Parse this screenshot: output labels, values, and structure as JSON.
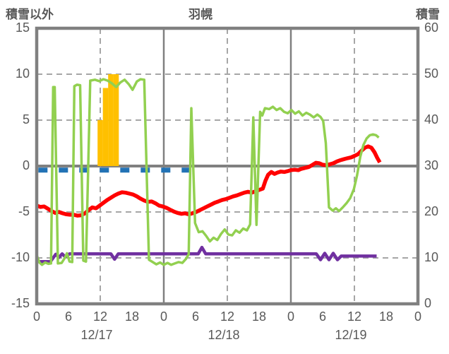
{
  "header": {
    "left_axis_title": "積雪以外",
    "chart_title": "羽幌",
    "right_axis_title": "積雪"
  },
  "colors": {
    "grid": "#A6A6A6",
    "frame": "#808080",
    "tick_text": "#595959",
    "green_line": "#92D050",
    "red_line": "#FF0000",
    "purple_line": "#7030A0",
    "blue_dashed_line": "#2272B5",
    "orange_bars": "#FFC000"
  },
  "chart_data": {
    "type": "line",
    "title": "羽幌",
    "left_axis": {
      "title": "積雪以外",
      "min": -15,
      "max": 15,
      "ticks": [
        15,
        10,
        5,
        0,
        -5,
        -10,
        -15
      ]
    },
    "right_axis": {
      "title": "積雪",
      "min": 0,
      "max": 60,
      "ticks": [
        60,
        50,
        40,
        30,
        20,
        10,
        0
      ]
    },
    "x_axis": {
      "total_hours": 72,
      "hour_tick_step": 6,
      "hour_tick_labels": [
        "0",
        "6",
        "12",
        "18",
        "0",
        "6",
        "12",
        "18",
        "0",
        "6",
        "12",
        "18",
        "0"
      ],
      "date_labels": [
        "12/17",
        "12/18",
        "12/19"
      ],
      "solid_gridline_hours": [
        24,
        48
      ],
      "dashed_gridline_hours": [
        12,
        36,
        60
      ]
    },
    "dashed_h_gridlines": [
      10,
      5,
      -5,
      -10
    ],
    "solid_h_gridlines": [
      0
    ],
    "bars": {
      "name": "orange-bars",
      "color": "#FFC000",
      "axis": "right",
      "baseline_right_value": 30,
      "values": [
        [
          12,
          40
        ],
        [
          13,
          47
        ],
        [
          14,
          50
        ],
        [
          15,
          50
        ]
      ]
    },
    "series": [
      {
        "name": "blue-dashed-line",
        "color": "#2272B5",
        "style": "dashed",
        "width": 7,
        "points": [
          [
            0.3,
            -0.45
          ],
          [
            28.8,
            -0.45
          ]
        ]
      },
      {
        "name": "purple-line",
        "color": "#7030A0",
        "style": "solid",
        "width": 4.5,
        "points": [
          [
            0,
            -10.4
          ],
          [
            2.6,
            -10.4
          ],
          [
            3.6,
            -9.6
          ],
          [
            4.2,
            -9.95
          ],
          [
            4.8,
            -9.55
          ],
          [
            5.4,
            -9.9
          ],
          [
            6.2,
            -9.55
          ],
          [
            14,
            -9.55
          ],
          [
            14.7,
            -10.15
          ],
          [
            15.4,
            -9.55
          ],
          [
            30.5,
            -9.55
          ],
          [
            31.2,
            -8.85
          ],
          [
            31.9,
            -9.55
          ],
          [
            52.8,
            -9.55
          ],
          [
            53.6,
            -10.2
          ],
          [
            54.4,
            -9.5
          ],
          [
            55.2,
            -10.2
          ],
          [
            56,
            -9.5
          ],
          [
            56.8,
            -10.2
          ],
          [
            57.5,
            -9.8
          ],
          [
            64.2,
            -9.8
          ]
        ]
      },
      {
        "name": "red-line",
        "color": "#FF0000",
        "style": "solid",
        "width": 5.5,
        "points": [
          [
            0,
            -4.3
          ],
          [
            0.7,
            -4.45
          ],
          [
            1.4,
            -4.4
          ],
          [
            2.1,
            -4.65
          ],
          [
            2.8,
            -4.9
          ],
          [
            3.5,
            -5.1
          ],
          [
            4.2,
            -5.0
          ],
          [
            4.9,
            -5.15
          ],
          [
            5.6,
            -5.25
          ],
          [
            6.3,
            -5.3
          ],
          [
            7,
            -5.3
          ],
          [
            7.7,
            -5.4
          ],
          [
            8.4,
            -5.35
          ],
          [
            9.1,
            -5.15
          ],
          [
            9.8,
            -4.8
          ],
          [
            10.5,
            -4.5
          ],
          [
            11.2,
            -4.6
          ],
          [
            11.9,
            -4.3
          ],
          [
            12.6,
            -4.0
          ],
          [
            13.3,
            -3.7
          ],
          [
            14,
            -3.45
          ],
          [
            14.7,
            -3.2
          ],
          [
            15.4,
            -3.0
          ],
          [
            16.1,
            -2.85
          ],
          [
            16.8,
            -2.9
          ],
          [
            17.5,
            -3.0
          ],
          [
            18.2,
            -3.1
          ],
          [
            18.9,
            -3.3
          ],
          [
            19.6,
            -3.55
          ],
          [
            20.3,
            -3.75
          ],
          [
            21,
            -3.9
          ],
          [
            21.7,
            -3.85
          ],
          [
            22.4,
            -4.05
          ],
          [
            23.1,
            -4.3
          ],
          [
            23.8,
            -4.4
          ],
          [
            24.5,
            -4.55
          ],
          [
            25.2,
            -4.75
          ],
          [
            25.9,
            -4.95
          ],
          [
            26.6,
            -5.1
          ],
          [
            27.3,
            -5.2
          ],
          [
            28,
            -5.15
          ],
          [
            28.7,
            -5.25
          ],
          [
            29.4,
            -5.15
          ],
          [
            30.1,
            -5.0
          ],
          [
            30.8,
            -4.8
          ],
          [
            31.5,
            -4.6
          ],
          [
            32.2,
            -4.4
          ],
          [
            32.9,
            -4.2
          ],
          [
            33.6,
            -4.0
          ],
          [
            34.3,
            -3.85
          ],
          [
            35,
            -3.7
          ],
          [
            35.7,
            -3.6
          ],
          [
            36.4,
            -3.45
          ],
          [
            37.1,
            -3.3
          ],
          [
            37.8,
            -3.2
          ],
          [
            38.5,
            -3.05
          ],
          [
            39.2,
            -2.9
          ],
          [
            39.9,
            -2.8
          ],
          [
            40.6,
            -2.9
          ],
          [
            41.3,
            -2.75
          ],
          [
            42,
            -2.6
          ],
          [
            42.7,
            -2.45
          ],
          [
            43.2,
            -1.6
          ],
          [
            43.7,
            -0.95
          ],
          [
            44.3,
            -0.65
          ],
          [
            44.9,
            -0.85
          ],
          [
            45.5,
            -0.7
          ],
          [
            46.1,
            -0.6
          ],
          [
            46.8,
            -0.65
          ],
          [
            47.4,
            -0.55
          ],
          [
            48,
            -0.45
          ],
          [
            48.7,
            -0.4
          ],
          [
            49.4,
            -0.45
          ],
          [
            50,
            -0.3
          ],
          [
            50.7,
            -0.2
          ],
          [
            51.4,
            -0.1
          ],
          [
            52,
            0.1
          ],
          [
            52.7,
            0.35
          ],
          [
            53.4,
            0.3
          ],
          [
            54,
            0.15
          ],
          [
            54.7,
            0.1
          ],
          [
            55.4,
            0.2
          ],
          [
            56,
            0.3
          ],
          [
            56.7,
            0.5
          ],
          [
            57.4,
            0.65
          ],
          [
            58,
            0.75
          ],
          [
            58.7,
            0.85
          ],
          [
            59.4,
            0.95
          ],
          [
            60,
            1.1
          ],
          [
            60.7,
            1.3
          ],
          [
            61.4,
            1.7
          ],
          [
            62,
            2.0
          ],
          [
            62.6,
            2.15
          ],
          [
            63.2,
            2.0
          ],
          [
            63.8,
            1.5
          ],
          [
            64.3,
            0.9
          ],
          [
            64.8,
            0.4
          ]
        ]
      },
      {
        "name": "green-line",
        "color": "#92D050",
        "style": "solid",
        "width": 3.5,
        "points": [
          [
            0,
            -9.7
          ],
          [
            0.5,
            -10.5
          ],
          [
            1,
            -10.75
          ],
          [
            1.6,
            -10.5
          ],
          [
            2.2,
            -10.65
          ],
          [
            2.7,
            -10.6
          ],
          [
            3.1,
            8.6
          ],
          [
            3.4,
            8.6
          ],
          [
            4,
            -10.6
          ],
          [
            4.7,
            -10.55
          ],
          [
            5.3,
            -10.0
          ],
          [
            5.7,
            -9.5
          ],
          [
            6.2,
            -10.4
          ],
          [
            6.7,
            -10.45
          ],
          [
            7.1,
            8.7
          ],
          [
            7.6,
            8.85
          ],
          [
            8.2,
            8.8
          ],
          [
            8.8,
            -10.3
          ],
          [
            9.3,
            -10.4
          ],
          [
            10.1,
            9.3
          ],
          [
            11,
            9.4
          ],
          [
            11.8,
            9.25
          ],
          [
            12.6,
            9.45
          ],
          [
            13.4,
            9.3
          ],
          [
            14.2,
            9.0
          ],
          [
            15,
            8.6
          ],
          [
            15.8,
            9.1
          ],
          [
            16.6,
            9.4
          ],
          [
            17.4,
            8.9
          ],
          [
            18.1,
            8.3
          ],
          [
            18.9,
            9.2
          ],
          [
            19.6,
            9.45
          ],
          [
            20.3,
            9.4
          ],
          [
            21.2,
            -10.2
          ],
          [
            21.9,
            -10.45
          ],
          [
            22.6,
            -10.7
          ],
          [
            23.3,
            -10.5
          ],
          [
            24,
            -10.75
          ],
          [
            24.7,
            -10.55
          ],
          [
            25.4,
            -10.75
          ],
          [
            26.1,
            -10.6
          ],
          [
            26.8,
            -10.45
          ],
          [
            27.5,
            -10.55
          ],
          [
            28.2,
            -10.1
          ],
          [
            28.7,
            -9.6
          ],
          [
            29.2,
            6.3
          ],
          [
            29.9,
            -6.2
          ],
          [
            30.6,
            -7.2
          ],
          [
            31.3,
            -7.1
          ],
          [
            32,
            -7.6
          ],
          [
            32.7,
            -8.2
          ],
          [
            33.4,
            -7.8
          ],
          [
            34.1,
            -8.05
          ],
          [
            34.8,
            -7.4
          ],
          [
            35.5,
            -6.9
          ],
          [
            36.2,
            -7.45
          ],
          [
            36.9,
            -7.55
          ],
          [
            37.6,
            -7.0
          ],
          [
            38.3,
            -7.25
          ],
          [
            39,
            -6.8
          ],
          [
            39.7,
            -7.0
          ],
          [
            40.3,
            -6.35
          ],
          [
            40.9,
            5.3
          ],
          [
            41.5,
            -6.4
          ],
          [
            42.2,
            5.9
          ],
          [
            42.6,
            5.5
          ],
          [
            43.1,
            6.3
          ],
          [
            43.9,
            6.2
          ],
          [
            44.6,
            6.45
          ],
          [
            45.3,
            6.1
          ],
          [
            46,
            6.3
          ],
          [
            46.7,
            5.9
          ],
          [
            47.4,
            5.75
          ],
          [
            48.1,
            6.1
          ],
          [
            48.8,
            5.7
          ],
          [
            49.5,
            5.95
          ],
          [
            50.2,
            5.5
          ],
          [
            50.9,
            5.8
          ],
          [
            51.6,
            5.6
          ],
          [
            52.3,
            5.3
          ],
          [
            53,
            5.6
          ],
          [
            53.6,
            5.35
          ],
          [
            54.1,
            4.9
          ],
          [
            54.6,
            2.5
          ],
          [
            55.2,
            -4.5
          ],
          [
            55.9,
            -4.85
          ],
          [
            56.5,
            -4.6
          ],
          [
            57.1,
            -4.9
          ],
          [
            57.8,
            -4.5
          ],
          [
            58.5,
            -4.05
          ],
          [
            59.2,
            -3.5
          ],
          [
            59.9,
            -2.5
          ],
          [
            60.5,
            -1.0
          ],
          [
            61.1,
            1.0
          ],
          [
            61.7,
            2.3
          ],
          [
            62.3,
            3.0
          ],
          [
            62.9,
            3.35
          ],
          [
            63.5,
            3.45
          ],
          [
            64.1,
            3.35
          ],
          [
            64.6,
            3.1
          ]
        ]
      }
    ]
  }
}
